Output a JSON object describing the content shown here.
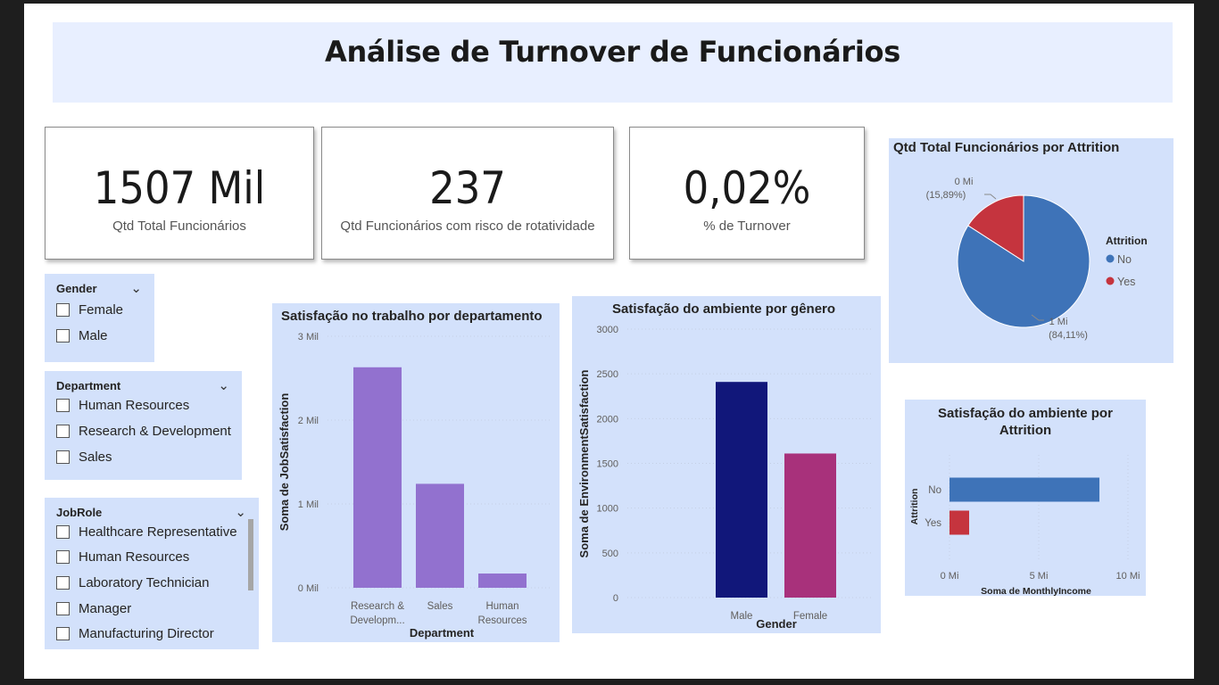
{
  "title": "Análise de Turnover de Funcionários",
  "kpis": [
    {
      "value": "1507 Mil",
      "label": "Qtd Total Funcionários"
    },
    {
      "value": "237",
      "label": "Qtd Funcionários com risco de rotatividade"
    },
    {
      "value": "0,02%",
      "label": "% de Turnover"
    }
  ],
  "slicers": {
    "gender": {
      "title": "Gender",
      "options": [
        "Female",
        "Male"
      ]
    },
    "department": {
      "title": "Department",
      "options": [
        "Human Resources",
        "Research & Development",
        "Sales"
      ]
    },
    "jobrole": {
      "title": "JobRole",
      "options": [
        "Healthcare Representative",
        "Human Resources",
        "Laboratory Technician",
        "Manager",
        "Manufacturing Director"
      ]
    }
  },
  "colors": {
    "panel_bg": "#d3e1fb",
    "title_bg": "#e8efff",
    "purple": "#9271cf",
    "navy": "#11177a",
    "magenta": "#a8317b",
    "blue": "#3e73b8",
    "red": "#c5343e"
  },
  "chart_data": [
    {
      "id": "job_satisfaction",
      "type": "bar",
      "title": "Satisfação no trabalho por departamento",
      "xlabel": "Department",
      "ylabel": "Soma de JobSatisfaction",
      "categories": [
        "Research & Developm...",
        "Sales",
        "Human Resources"
      ],
      "category_lines": [
        [
          "Research &",
          "Developm..."
        ],
        [
          "Sales"
        ],
        [
          "Human",
          "Resources"
        ]
      ],
      "values": [
        2630,
        1240,
        170
      ],
      "yticks": [
        0,
        1000,
        2000,
        3000
      ],
      "ytick_labels": [
        "0 Mil",
        "1 Mil",
        "2 Mil",
        "3 Mil"
      ],
      "ylim": [
        0,
        3000
      ],
      "colors": [
        "#9271cf",
        "#9271cf",
        "#9271cf"
      ]
    },
    {
      "id": "env_by_gender",
      "type": "bar",
      "title": "Satisfação do ambiente por gênero",
      "xlabel": "Gender",
      "ylabel": "Soma de EnvironmentSatisfaction",
      "categories": [
        "Male",
        "Female"
      ],
      "category_lines": [
        [
          "Male"
        ],
        [
          "Female"
        ]
      ],
      "values": [
        2410,
        1610
      ],
      "yticks": [
        0,
        500,
        1000,
        1500,
        2000,
        2500,
        3000
      ],
      "ytick_labels": [
        "0",
        "500",
        "1000",
        "1500",
        "2000",
        "2500",
        "3000"
      ],
      "ylim": [
        0,
        3000
      ],
      "colors": [
        "#11177a",
        "#a8317b"
      ]
    },
    {
      "id": "attrition_pie",
      "type": "pie",
      "title": "Qtd Total Funcionários por Attrition",
      "legend_title": "Attrition",
      "legend_position": "right",
      "slices": [
        {
          "name": "No",
          "percent": 84.11,
          "label": "1 Mi",
          "pct_label": "(84,11%)",
          "color": "#3e73b8"
        },
        {
          "name": "Yes",
          "percent": 15.89,
          "label": "0 Mi",
          "pct_label": "(15,89%)",
          "color": "#c5343e"
        }
      ]
    },
    {
      "id": "env_by_attrition",
      "type": "bar",
      "orientation": "horizontal",
      "title_lines": [
        "Satisfação do ambiente por",
        "Attrition"
      ],
      "xlabel": "Soma de MonthlyIncome",
      "ylabel": "Attrition",
      "categories": [
        "No",
        "Yes"
      ],
      "values": [
        8.4,
        1.1
      ],
      "xticks": [
        0,
        5,
        10
      ],
      "xtick_labels": [
        "0 Mi",
        "5 Mi",
        "10 Mi"
      ],
      "xlim": [
        0,
        10
      ],
      "colors": [
        "#3e73b8",
        "#c5343e"
      ]
    }
  ]
}
